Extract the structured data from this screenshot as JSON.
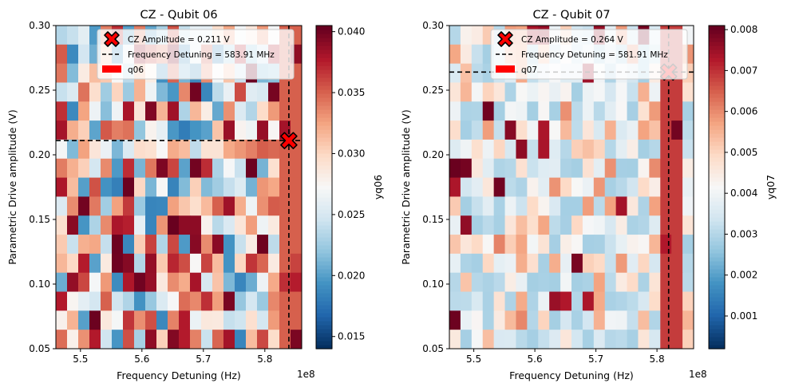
{
  "chart_data": [
    {
      "type": "heatmap",
      "title": "CZ - Qubit 06",
      "xlabel": "Frequency Detuning (Hz)",
      "ylabel": "Parametric Drive amplitude (V)",
      "x_offset_label": "1e8",
      "xlim": [
        546000000.0,
        586000000.0
      ],
      "ylim": [
        0.05,
        0.3
      ],
      "x_ticks": [
        550000000.0,
        560000000.0,
        570000000.0,
        580000000.0
      ],
      "x_tick_labels": [
        "5.5",
        "5.6",
        "5.7",
        "5.8"
      ],
      "y_ticks": [
        0.05,
        0.1,
        0.15,
        0.2,
        0.25,
        0.3
      ],
      "y_tick_labels": [
        "0.05",
        "0.10",
        "0.15",
        "0.20",
        "0.25",
        "0.30"
      ],
      "grid": false,
      "colormap": "RdBu_r",
      "colorbar_label": "yq06",
      "colorbar_range": [
        0.014,
        0.0405
      ],
      "colorbar_ticks": [
        0.015,
        0.02,
        0.025,
        0.03,
        0.035,
        0.04
      ],
      "colorbar_tick_labels": [
        "0.015",
        "0.020",
        "0.025",
        "0.030",
        "0.035",
        "0.040"
      ],
      "grid_size": {
        "nx": 22,
        "ny": 17
      },
      "seed": 11,
      "optimum": {
        "x": 583910000.0,
        "y": 0.211
      },
      "legend_position": "top-right",
      "legend": [
        {
          "label": "CZ Amplitude = 0.211 V",
          "marker": "x-marker",
          "color": "#ff0000"
        },
        {
          "label": "Frequency Detuning = 583.91 MHz",
          "marker": "dashed-line",
          "color": "#000000"
        },
        {
          "label": "q06",
          "marker": "red-patch",
          "color": "#ff0000"
        }
      ]
    },
    {
      "type": "heatmap",
      "title": "CZ - Qubit 07",
      "xlabel": "Frequency Detuning (Hz)",
      "ylabel": "Parametric Drive amplitude (V)",
      "x_offset_label": "1e8",
      "xlim": [
        546000000.0,
        586000000.0
      ],
      "ylim": [
        0.05,
        0.3
      ],
      "x_ticks": [
        550000000.0,
        560000000.0,
        570000000.0,
        580000000.0
      ],
      "x_tick_labels": [
        "5.5",
        "5.6",
        "5.7",
        "5.8"
      ],
      "y_ticks": [
        0.05,
        0.1,
        0.15,
        0.2,
        0.25,
        0.3
      ],
      "y_tick_labels": [
        "0.05",
        "0.10",
        "0.15",
        "0.20",
        "0.25",
        "0.30"
      ],
      "grid": false,
      "colormap": "RdBu_r",
      "colorbar_label": "yq07",
      "colorbar_range": [
        0.0002,
        0.0081
      ],
      "colorbar_ticks": [
        0.001,
        0.002,
        0.003,
        0.004,
        0.005,
        0.006,
        0.007,
        0.008
      ],
      "colorbar_tick_labels": [
        "0.001",
        "0.002",
        "0.003",
        "0.004",
        "0.005",
        "0.006",
        "0.007",
        "0.008"
      ],
      "grid_size": {
        "nx": 22,
        "ny": 17
      },
      "seed": 29,
      "optimum": {
        "x": 581910000.0,
        "y": 0.264
      },
      "legend_position": "top-right",
      "legend": [
        {
          "label": "CZ Amplitude = 0.264 V",
          "marker": "x-marker",
          "color": "#ff0000"
        },
        {
          "label": "Frequency Detuning = 581.91 MHz",
          "marker": "dashed-line",
          "color": "#000000"
        },
        {
          "label": "q07",
          "marker": "red-patch",
          "color": "#ff0000"
        }
      ]
    }
  ]
}
